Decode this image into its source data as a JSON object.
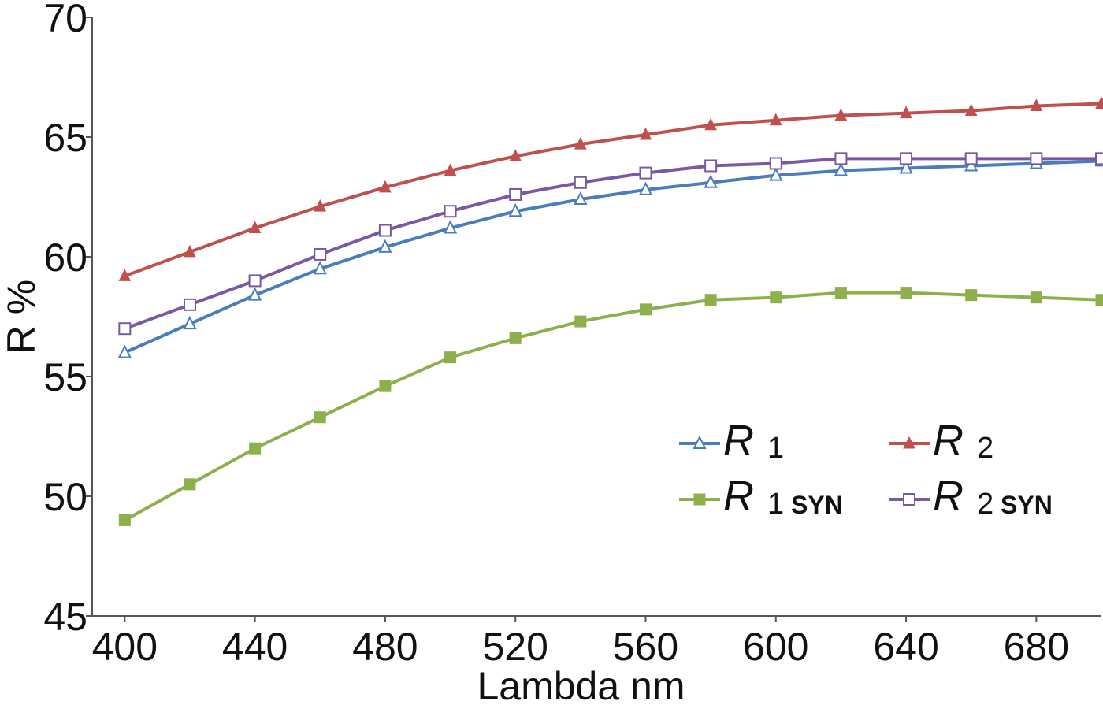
{
  "chart_data": {
    "type": "line",
    "xlabel": "Lambda nm",
    "ylabel": "R %",
    "xlim": [
      390,
      700
    ],
    "ylim": [
      45,
      70
    ],
    "xticks": [
      400,
      440,
      480,
      520,
      560,
      600,
      640,
      680
    ],
    "yticks": [
      45,
      50,
      55,
      60,
      65,
      70
    ],
    "grid": false,
    "legend_position": "lower-right",
    "x": [
      400,
      420,
      440,
      460,
      480,
      500,
      520,
      540,
      560,
      580,
      600,
      620,
      640,
      660,
      680,
      700
    ],
    "series": [
      {
        "name": "R 1",
        "label_main": "R",
        "label_sub": "1",
        "color": "#4a7ebb",
        "marker": "triangle-open",
        "values": [
          56.0,
          57.2,
          58.4,
          59.5,
          60.4,
          61.2,
          61.9,
          62.4,
          62.8,
          63.1,
          63.4,
          63.6,
          63.7,
          63.8,
          63.9,
          64.0
        ]
      },
      {
        "name": "R 2",
        "label_main": "R",
        "label_sub": "2",
        "color": "#c0504d",
        "marker": "triangle-filled",
        "values": [
          59.2,
          60.2,
          61.2,
          62.1,
          62.9,
          63.6,
          64.2,
          64.7,
          65.1,
          65.5,
          65.7,
          65.9,
          66.0,
          66.1,
          66.3,
          66.4
        ]
      },
      {
        "name": "R 1 SYN",
        "label_main": "R",
        "label_sub": "1",
        "label_sub2": "SYN",
        "color": "#8db04c",
        "marker": "square-filled",
        "values": [
          49.0,
          50.5,
          52.0,
          53.3,
          54.6,
          55.8,
          56.6,
          57.3,
          57.8,
          58.2,
          58.3,
          58.5,
          58.5,
          58.4,
          58.3,
          58.2
        ]
      },
      {
        "name": "R 2 SYN",
        "label_main": "R",
        "label_sub": "2",
        "label_sub2": "SYN",
        "color": "#7a59a3",
        "marker": "square-open",
        "values": [
          57.0,
          58.0,
          59.0,
          60.1,
          61.1,
          61.9,
          62.6,
          63.1,
          63.5,
          63.8,
          63.9,
          64.1,
          64.1,
          64.1,
          64.1,
          64.1
        ]
      }
    ]
  }
}
